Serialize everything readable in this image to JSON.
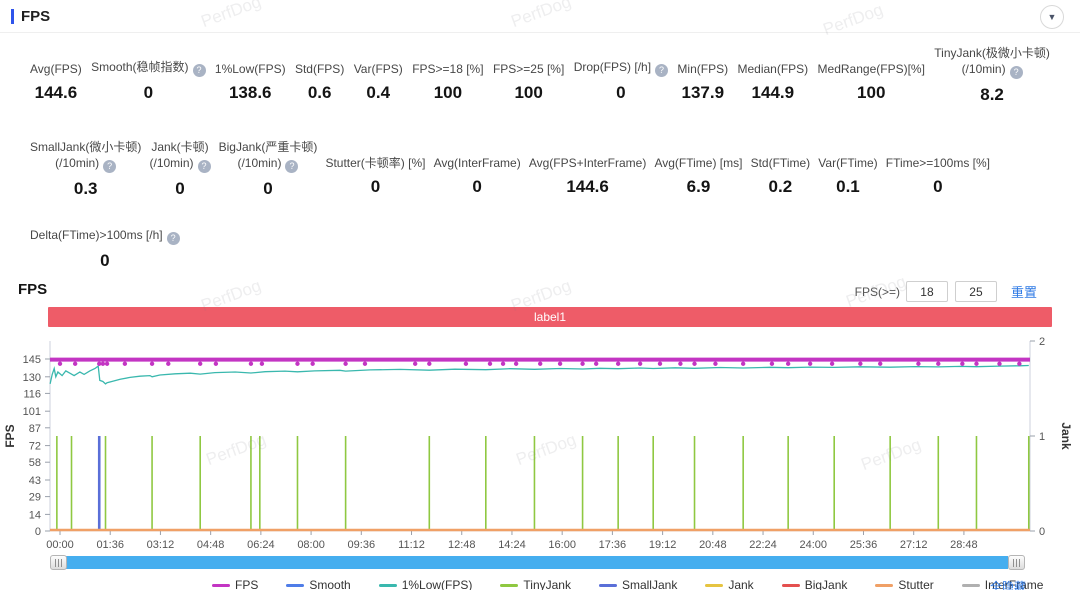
{
  "header": {
    "title": "FPS",
    "collapse_icon": "▼"
  },
  "watermark": {
    "text": "PerfDog"
  },
  "stats_rows": [
    {
      "items": [
        {
          "label": "Avg(FPS)",
          "value": "144.6"
        },
        {
          "label": "Smooth(稳帧指数)",
          "help": true,
          "value": "0"
        },
        {
          "label": "1%Low(FPS)",
          "value": "138.6"
        },
        {
          "label": "Std(FPS)",
          "value": "0.6"
        },
        {
          "label": "Var(FPS)",
          "value": "0.4"
        },
        {
          "label": "FPS>=18 [%]",
          "value": "100"
        },
        {
          "label": "FPS>=25 [%]",
          "value": "100"
        },
        {
          "label": "Drop(FPS) [/h]",
          "help": true,
          "value": "0"
        },
        {
          "label": "Min(FPS)",
          "value": "137.9"
        },
        {
          "label": "Median(FPS)",
          "value": "144.9"
        },
        {
          "label": "MedRange(FPS)[%]",
          "value": "100"
        },
        {
          "label": "TinyJank(极微小卡顿)",
          "label2": "(/10min)",
          "help": true,
          "value": "8.2"
        }
      ]
    },
    {
      "items": [
        {
          "label": "SmallJank(微小卡顿)",
          "label2": "(/10min)",
          "help": true,
          "value": "0.3"
        },
        {
          "label": "Jank(卡顿)",
          "label2": "(/10min)",
          "help": true,
          "value": "0"
        },
        {
          "label": "BigJank(严重卡顿)",
          "label2": "(/10min)",
          "help": true,
          "value": "0"
        },
        {
          "label": "Stutter(卡顿率) [%]",
          "value": "0"
        },
        {
          "label": "Avg(InterFrame)",
          "value": "0"
        },
        {
          "label": "Avg(FPS+InterFrame)",
          "value": "144.6"
        },
        {
          "label": "Avg(FTime) [ms]",
          "value": "6.9"
        },
        {
          "label": "Std(FTime)",
          "value": "0.2"
        },
        {
          "label": "Var(FTime)",
          "value": "0.1"
        },
        {
          "label": "FTime>=100ms [%]",
          "value": "0"
        }
      ]
    },
    {
      "items": [
        {
          "label": "Delta(FTime)>100ms [/h]",
          "help": true,
          "value": "0"
        }
      ]
    }
  ],
  "chart_section": {
    "title": "FPS",
    "filter_label": "FPS(>=)",
    "filter_inputs": [
      "18",
      "25"
    ],
    "reset_label": "重置",
    "banner_text": "label1",
    "banner_color": "#ee5c68",
    "hide_all_label": "全隐藏"
  },
  "chart_data": {
    "type": "line",
    "title": "FPS",
    "xlabel": "",
    "ylabel_left": "FPS",
    "ylabel_right": "Jank",
    "grid": false,
    "y_left_ticks": [
      0,
      14,
      29,
      43,
      58,
      72,
      87,
      101,
      116,
      130,
      145
    ],
    "y_left_max_axis": 160,
    "y_right_ticks": [
      0,
      1,
      2
    ],
    "x_tick_labels": [
      "00:00",
      "01:36",
      "03:12",
      "04:48",
      "06:24",
      "08:00",
      "09:36",
      "11:12",
      "12:48",
      "14:24",
      "16:00",
      "17:36",
      "19:12",
      "20:48",
      "22:24",
      "24:00",
      "25:36",
      "27:12",
      "28:48"
    ],
    "x_tick_interval_s": 96,
    "series": [
      {
        "name": "FPS",
        "color": "#c335c3",
        "kind": "hline",
        "value": 144.5
      },
      {
        "name": "1%Low(FPS)",
        "color": "#3ab8ae",
        "kind": "line",
        "points": [
          [
            -19,
            124
          ],
          [
            -15,
            132
          ],
          [
            -11,
            137
          ],
          [
            -8,
            130
          ],
          [
            -4,
            134
          ],
          [
            4,
            131
          ],
          [
            11,
            135
          ],
          [
            19,
            133
          ],
          [
            27,
            131
          ],
          [
            38,
            134
          ],
          [
            46,
            132
          ],
          [
            57,
            135
          ],
          [
            67,
            137
          ],
          [
            73,
            139
          ],
          [
            76,
            127
          ],
          [
            82,
            126
          ],
          [
            87,
            124
          ],
          [
            90,
            125
          ],
          [
            99,
            126
          ],
          [
            115,
            128
          ],
          [
            134,
            129.5
          ],
          [
            153,
            130.5
          ],
          [
            172,
            131
          ],
          [
            176,
            130
          ],
          [
            191,
            131.5
          ],
          [
            220,
            132.5
          ],
          [
            249,
            133
          ],
          [
            268,
            132.3
          ],
          [
            296,
            133.5
          ],
          [
            335,
            134
          ],
          [
            365,
            133.2
          ],
          [
            392,
            134.3
          ],
          [
            430,
            134.8
          ],
          [
            454,
            134.2
          ],
          [
            487,
            135
          ],
          [
            535,
            135.5
          ],
          [
            546,
            134.8
          ],
          [
            593,
            135.8
          ],
          [
            650,
            136.2
          ],
          [
            706,
            135.6
          ],
          [
            755,
            136.4
          ],
          [
            814,
            136
          ],
          [
            860,
            136.8
          ],
          [
            907,
            136.3
          ],
          [
            956,
            137
          ],
          [
            999,
            136.6
          ],
          [
            1032,
            137.2
          ],
          [
            1067,
            136.8
          ],
          [
            1109,
            137.4
          ],
          [
            1134,
            137
          ],
          [
            1176,
            137.6
          ],
          [
            1213,
            137.2
          ],
          [
            1262,
            137.8
          ],
          [
            1306,
            137.4
          ],
          [
            1357,
            138
          ],
          [
            1392,
            137.7
          ],
          [
            1434,
            138.2
          ],
          [
            1480,
            137.9
          ],
          [
            1530,
            138.4
          ],
          [
            1587,
            138.1
          ],
          [
            1635,
            138.6
          ],
          [
            1679,
            138.3
          ],
          [
            1721,
            138.8
          ],
          [
            1752,
            138.5
          ],
          [
            1796,
            139
          ],
          [
            1834,
            139.3
          ],
          [
            1852,
            139.5
          ]
        ]
      },
      {
        "name": "TinyJank",
        "color": "#8fc841",
        "kind": "event",
        "jank_value": 1,
        "times_s": [
          -6,
          22,
          87,
          176,
          268,
          365,
          382,
          454,
          546,
          706,
          814,
          907,
          999,
          1067,
          1134,
          1213,
          1306,
          1392,
          1480,
          1587,
          1679,
          1752,
          1852
        ]
      },
      {
        "name": "SmallJank",
        "color": "#5a6fd8",
        "kind": "event",
        "jank_value": 1,
        "times_s": [
          75
        ]
      },
      {
        "name": "Stutter",
        "color": "#f0a066",
        "kind": "hline",
        "value": 0
      }
    ],
    "fps_dots": {
      "color": "#c335c3",
      "value": 141,
      "times_s": [
        0,
        29,
        75,
        82,
        90,
        124,
        176,
        207,
        268,
        298,
        365,
        386,
        454,
        483,
        546,
        583,
        679,
        706,
        776,
        822,
        847,
        872,
        918,
        956,
        999,
        1025,
        1067,
        1109,
        1147,
        1186,
        1213,
        1253,
        1306,
        1361,
        1392,
        1434,
        1476,
        1530,
        1568,
        1641,
        1679,
        1725,
        1752,
        1796,
        1834
      ]
    },
    "legend": [
      {
        "name": "FPS",
        "color": "#c335c3"
      },
      {
        "name": "Smooth",
        "color": "#4f7de8"
      },
      {
        "name": "1%Low(FPS)",
        "color": "#3ab8ae"
      },
      {
        "name": "TinyJank",
        "color": "#8fc841"
      },
      {
        "name": "SmallJank",
        "color": "#5a6fd8"
      },
      {
        "name": "Jank",
        "color": "#e6c441"
      },
      {
        "name": "BigJank",
        "color": "#e4504f"
      },
      {
        "name": "Stutter",
        "color": "#f0a066"
      },
      {
        "name": "InterFrame",
        "color": "#b0b0b0"
      }
    ]
  }
}
